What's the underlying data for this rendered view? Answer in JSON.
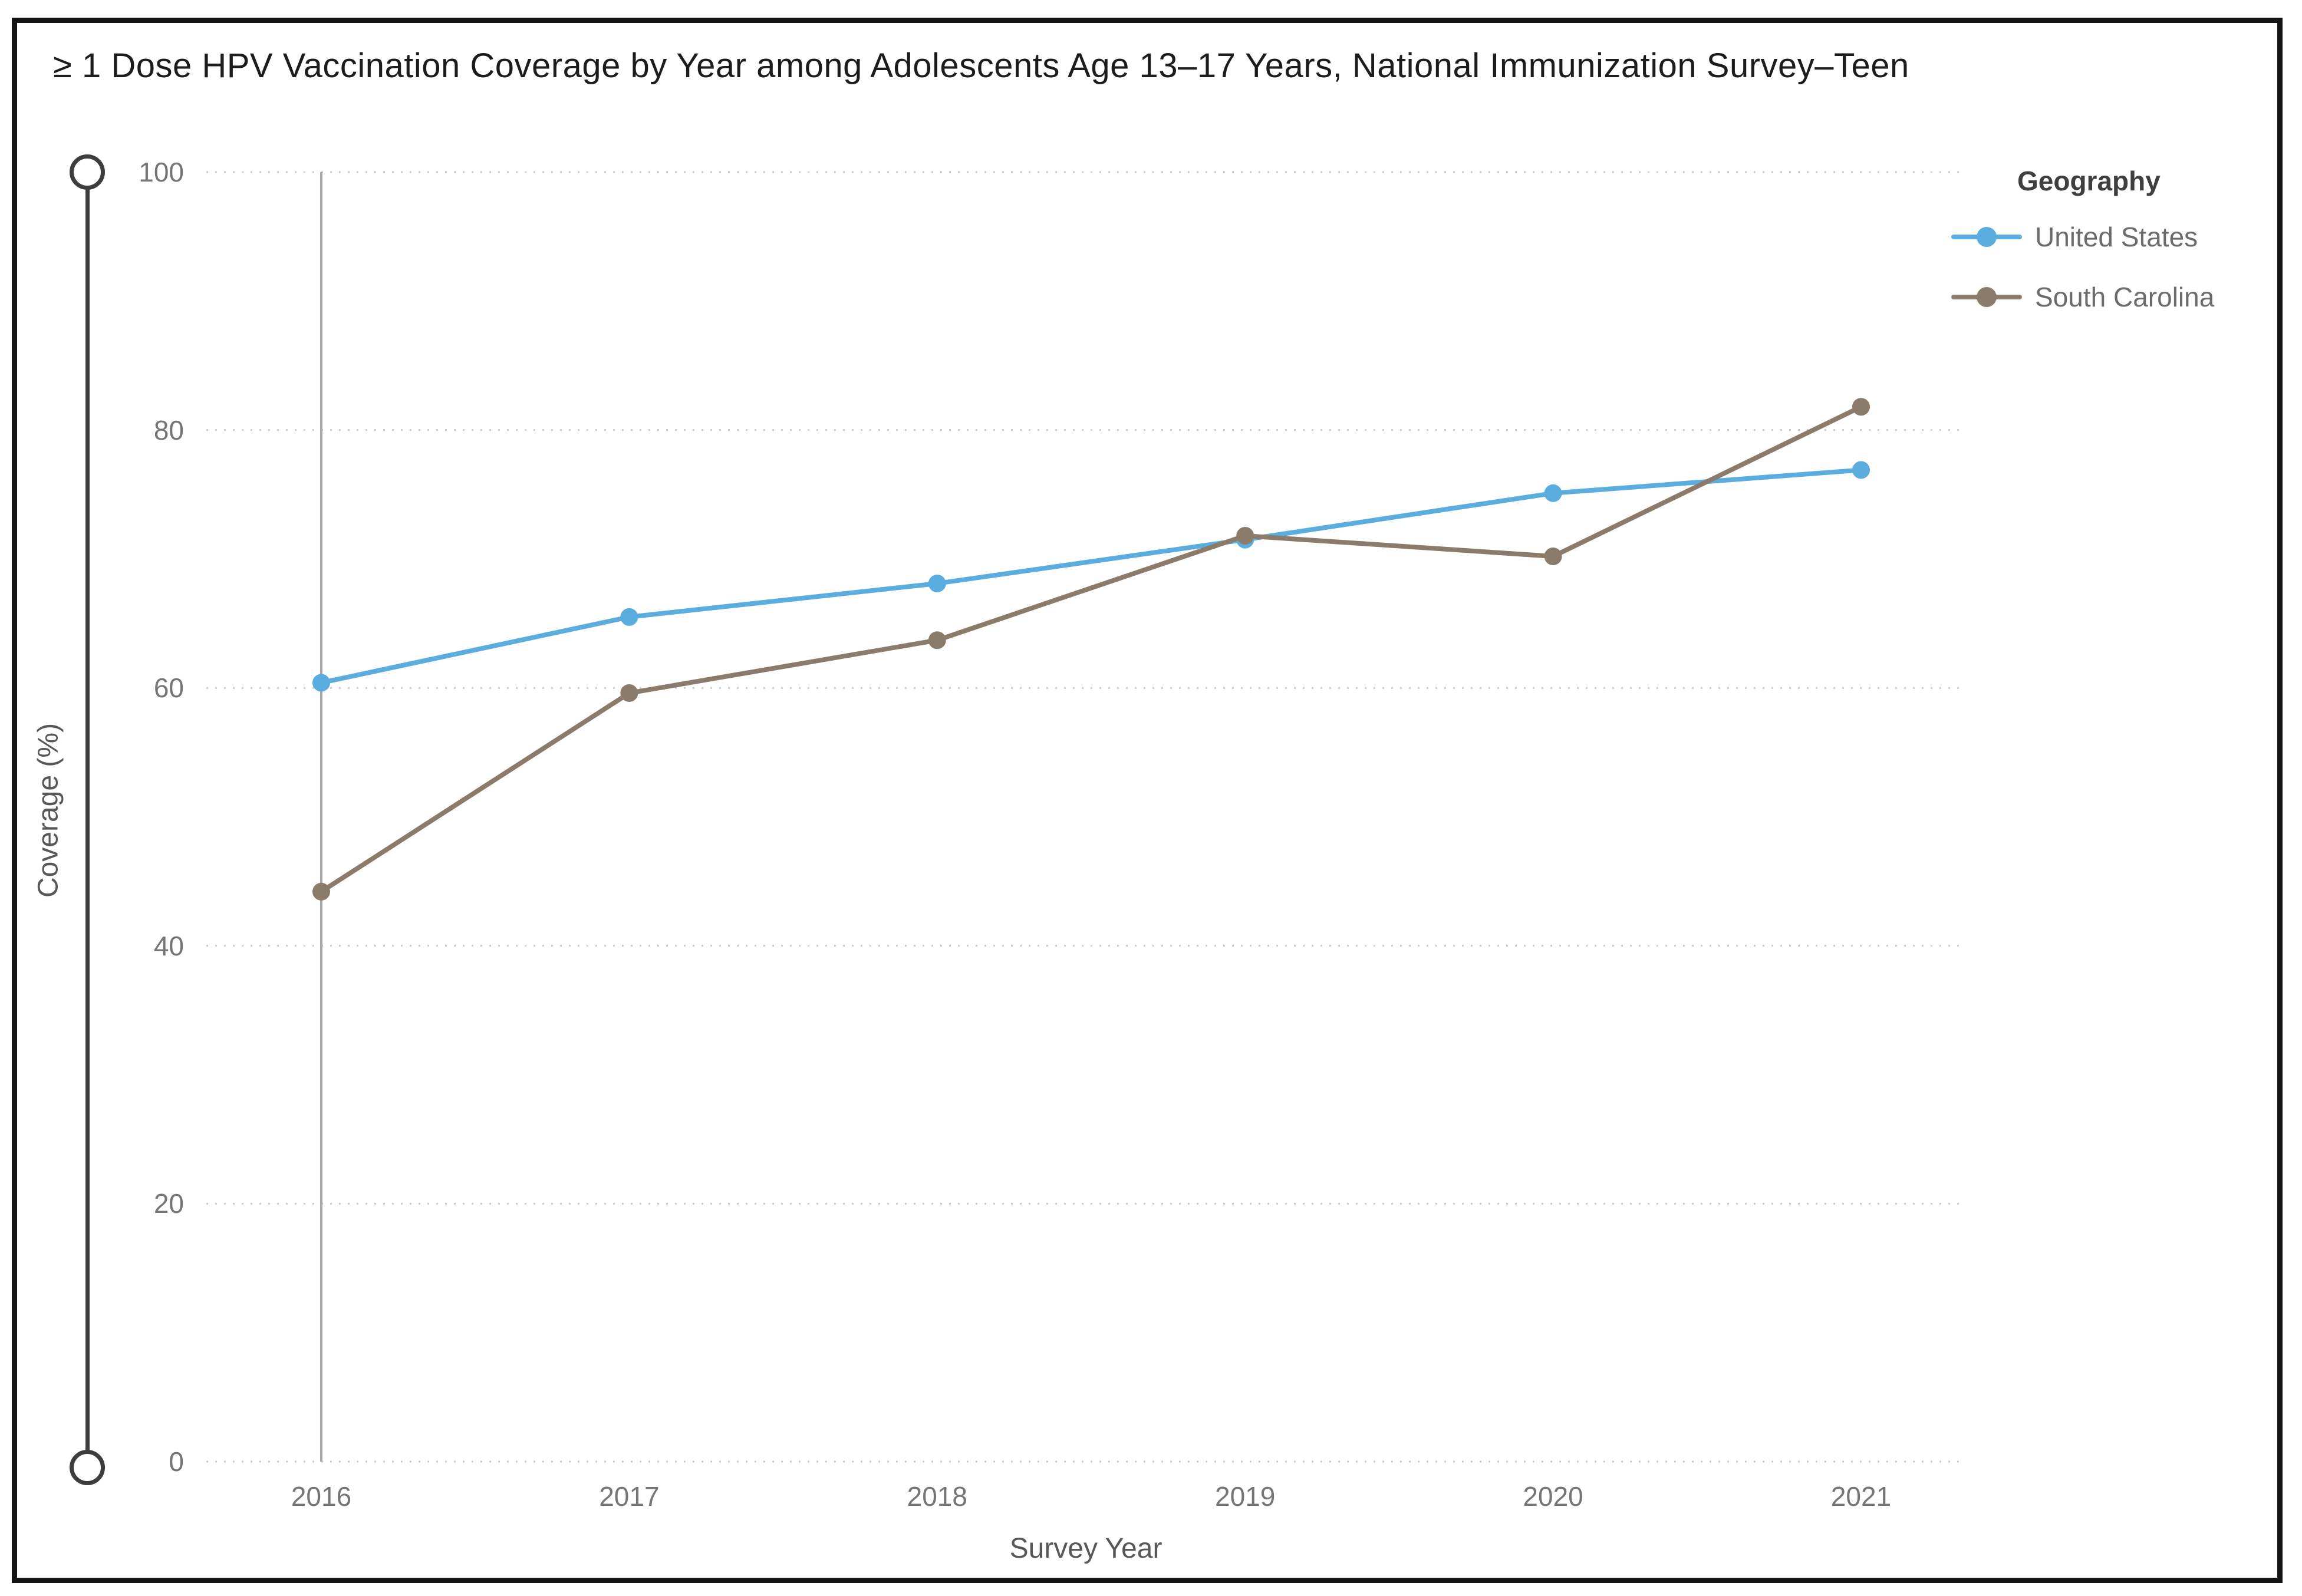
{
  "chart_data": {
    "type": "line",
    "title": "≥ 1 Dose HPV Vaccination Coverage by Year among Adolescents Age 13–17 Years, National Immunization Survey–Teen",
    "xlabel": "Survey Year",
    "ylabel": "Coverage (%)",
    "x": [
      "2016",
      "2017",
      "2018",
      "2019",
      "2020",
      "2021"
    ],
    "yticks": [
      100,
      80,
      60,
      40,
      20,
      0
    ],
    "ylim": [
      0,
      100
    ],
    "grid": "horizontal-dotted",
    "grid_color": "#c9c9c9",
    "reference_line_x": "2016",
    "reference_line_color": "#a8a8a8",
    "legend_title": "Geography",
    "legend_position": "top-right",
    "series": [
      {
        "name": "United States",
        "color": "#5BACDF",
        "values": [
          60.4,
          65.5,
          68.1,
          71.5,
          75.1,
          76.9
        ]
      },
      {
        "name": "South Carolina",
        "color": "#8B7B6B",
        "values": [
          44.2,
          59.6,
          63.7,
          71.8,
          70.2,
          81.8
        ]
      }
    ]
  }
}
